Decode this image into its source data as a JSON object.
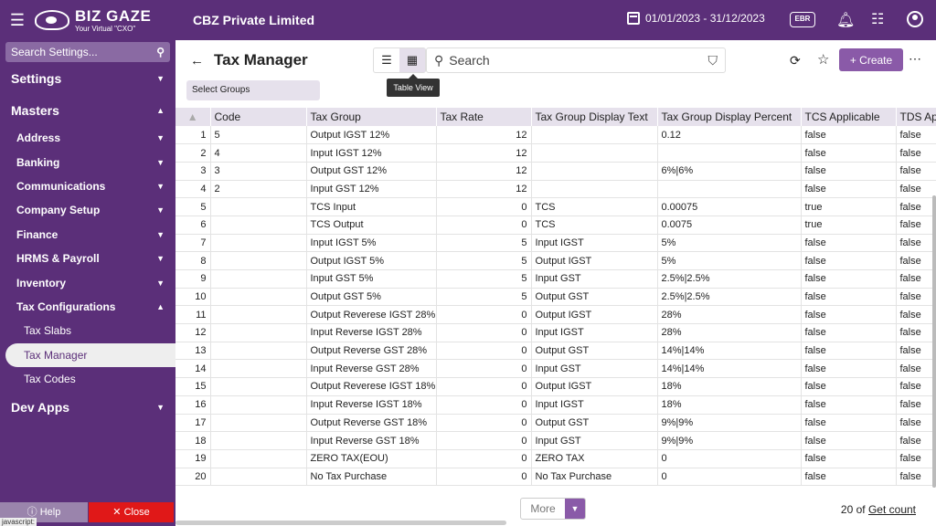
{
  "header": {
    "brand_name": "BIZ GAZE",
    "brand_tagline": "Your Virtual \"CXO\"",
    "company": "CBZ Private Limited",
    "period": "01/01/2023 - 31/12/2023",
    "badge": "EBR"
  },
  "sidebar": {
    "search_placeholder": "Search Settings...",
    "items": [
      {
        "label": "Settings",
        "chevron": "v"
      },
      {
        "label": "Masters",
        "chevron": "^"
      },
      {
        "label": "Address",
        "chevron": "v"
      },
      {
        "label": "Banking",
        "chevron": "v"
      },
      {
        "label": "Communications",
        "chevron": "v"
      },
      {
        "label": "Company Setup",
        "chevron": "v"
      },
      {
        "label": "Finance",
        "chevron": "v"
      },
      {
        "label": "HRMS & Payroll",
        "chevron": "v"
      },
      {
        "label": "Inventory",
        "chevron": "v"
      },
      {
        "label": "Tax Configurations",
        "chevron": "^"
      },
      {
        "label": "Tax Slabs"
      },
      {
        "label": "Tax Manager"
      },
      {
        "label": "Tax Codes"
      },
      {
        "label": "Dev Apps",
        "chevron": "v"
      }
    ],
    "help_label": "Help",
    "close_label": "Close",
    "status_text": "javascript:"
  },
  "toolbar": {
    "title": "Tax Manager",
    "search_placeholder": "Search",
    "create_label": "Create",
    "select_groups": "Select Groups",
    "tooltip": "Table View"
  },
  "table": {
    "columns": [
      "Code",
      "Tax Group",
      "Tax Rate",
      "Tax Group Display Text",
      "Tax Group Display Percent",
      "TCS Applicable",
      "TDS Ap"
    ],
    "rows": [
      [
        "1",
        "5",
        "Output IGST 12%",
        "12",
        "",
        "0.12",
        "false",
        "false"
      ],
      [
        "2",
        "4",
        "Input IGST 12%",
        "12",
        "",
        "",
        "false",
        "false"
      ],
      [
        "3",
        "3",
        "Output GST 12%",
        "12",
        "",
        "6%|6%",
        "false",
        "false"
      ],
      [
        "4",
        "2",
        "Input GST 12%",
        "12",
        "",
        "",
        "false",
        "false"
      ],
      [
        "5",
        "",
        "TCS Input",
        "0",
        "TCS",
        "0.00075",
        "true",
        "false"
      ],
      [
        "6",
        "",
        "TCS Output",
        "0",
        "TCS",
        "0.0075",
        "true",
        "false"
      ],
      [
        "7",
        "",
        "Input IGST 5%",
        "5",
        "Input IGST",
        "5%",
        "false",
        "false"
      ],
      [
        "8",
        "",
        "Output IGST 5%",
        "5",
        "Output IGST",
        "5%",
        "false",
        "false"
      ],
      [
        "9",
        "",
        "Input GST 5%",
        "5",
        "Input GST",
        "2.5%|2.5%",
        "false",
        "false"
      ],
      [
        "10",
        "",
        "Output GST 5%",
        "5",
        "Output GST",
        "2.5%|2.5%",
        "false",
        "false"
      ],
      [
        "11",
        "",
        "Output Reverese IGST 28%",
        "0",
        "Output IGST",
        "28%",
        "false",
        "false"
      ],
      [
        "12",
        "",
        "Input Reverse IGST 28%",
        "0",
        "Input IGST",
        "28%",
        "false",
        "false"
      ],
      [
        "13",
        "",
        "Output Reverse GST 28%",
        "0",
        "Output GST",
        "14%|14%",
        "false",
        "false"
      ],
      [
        "14",
        "",
        "Input Reverse GST 28%",
        "0",
        "Input GST",
        "14%|14%",
        "false",
        "false"
      ],
      [
        "15",
        "",
        "Output Reverese IGST 18%",
        "0",
        "Output IGST",
        "18%",
        "false",
        "false"
      ],
      [
        "16",
        "",
        "Input Reverse IGST 18%",
        "0",
        "Input IGST",
        "18%",
        "false",
        "false"
      ],
      [
        "17",
        "",
        "Output Reverse GST 18%",
        "0",
        "Output GST",
        "9%|9%",
        "false",
        "false"
      ],
      [
        "18",
        "",
        "Input Reverse GST 18%",
        "0",
        "Input GST",
        "9%|9%",
        "false",
        "false"
      ],
      [
        "19",
        "",
        "ZERO TAX(EOU)",
        "0",
        "ZERO TAX",
        "0",
        "false",
        "false"
      ],
      [
        "20",
        "",
        "No Tax Purchase",
        "0",
        "No Tax Purchase",
        "0",
        "false",
        "false"
      ]
    ]
  },
  "footer": {
    "more_label": "More",
    "count_text": "20 of",
    "get_count_label": "Get count"
  },
  "colors": {
    "brand": "#5b2f79",
    "accent": "#8a5aa8",
    "close": "#e01818"
  }
}
